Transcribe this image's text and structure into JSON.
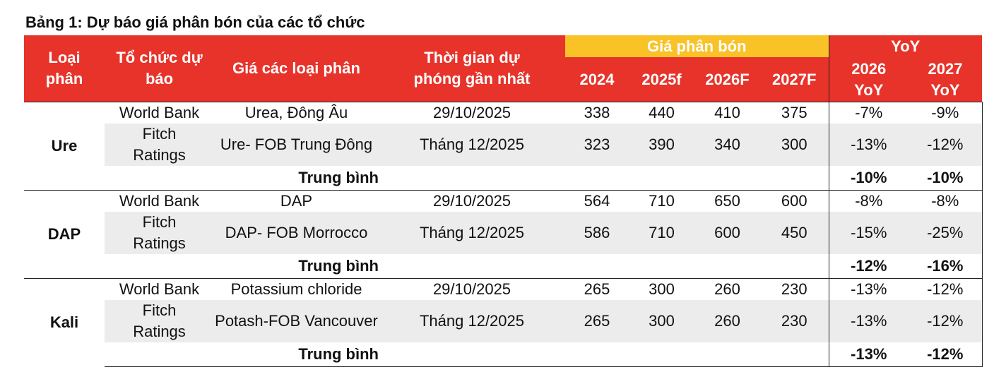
{
  "title": "Bảng 1: Dự báo giá phân bón của các tổ chức",
  "headers": {
    "type_l1": "Loại",
    "type_l2": "phân",
    "org_l1": "Tổ chức dự",
    "org_l2": "báo",
    "price_type": "Giá các loại phân",
    "time_l1": "Thời gian dự",
    "time_l2": "phóng gần nhất",
    "price_group": "Giá phân bón",
    "years": [
      "2024",
      "2025f",
      "2026F",
      "2027F"
    ],
    "yoy_group": "YoY",
    "yoy2026_l1": "2026",
    "yoy2026_l2": "YoY",
    "yoy2027_l1": "2027",
    "yoy2027_l2": "YoY"
  },
  "groups": [
    {
      "name": "Ure",
      "rows": [
        {
          "org": "World Bank",
          "price_type": "Urea, Đông Âu",
          "time": "29/10/2025",
          "p2024": "338",
          "p2025": "440",
          "p2026": "410",
          "p2027": "375",
          "yoy2026": "-7%",
          "yoy2027": "-9%"
        },
        {
          "org_l1": "Fitch",
          "org_l2": "Ratings",
          "price_type": "Ure- FOB Trung Đông",
          "time": "Tháng 12/2025",
          "p2024": "323",
          "p2025": "390",
          "p2026": "340",
          "p2027": "300",
          "yoy2026": "-13%",
          "yoy2027": "-12%"
        }
      ],
      "avg_label": "Trung bình",
      "avg_yoy2026": "-10%",
      "avg_yoy2027": "-10%"
    },
    {
      "name": "DAP",
      "rows": [
        {
          "org": "World Bank",
          "price_type": "DAP",
          "time": "29/10/2025",
          "p2024": "564",
          "p2025": "710",
          "p2026": "650",
          "p2027": "600",
          "yoy2026": "-8%",
          "yoy2027": "-8%"
        },
        {
          "org_l1": "Fitch",
          "org_l2": "Ratings",
          "price_type": "DAP- FOB Morrocco",
          "time": "Tháng 12/2025",
          "p2024": "586",
          "p2025": "710",
          "p2026": "600",
          "p2027": "450",
          "yoy2026": "-15%",
          "yoy2027": "-25%"
        }
      ],
      "avg_label": "Trung bình",
      "avg_yoy2026": "-12%",
      "avg_yoy2027": "-16%"
    },
    {
      "name": "Kali",
      "rows": [
        {
          "org": "World Bank",
          "price_type": "Potassium chloride",
          "time": "29/10/2025",
          "p2024": "265",
          "p2025": "300",
          "p2026": "260",
          "p2027": "230",
          "yoy2026": "-13%",
          "yoy2027": "-12%"
        },
        {
          "org_l1": "Fitch",
          "org_l2": "Ratings",
          "price_type": "Potash-FOB Vancouver",
          "time": "Tháng 12/2025",
          "p2024": "265",
          "p2025": "300",
          "p2026": "260",
          "p2027": "230",
          "yoy2026": "-13%",
          "yoy2027": "-12%"
        }
      ],
      "avg_label": "Trung bình",
      "avg_yoy2026": "-13%",
      "avg_yoy2027": "-12%"
    }
  ]
}
